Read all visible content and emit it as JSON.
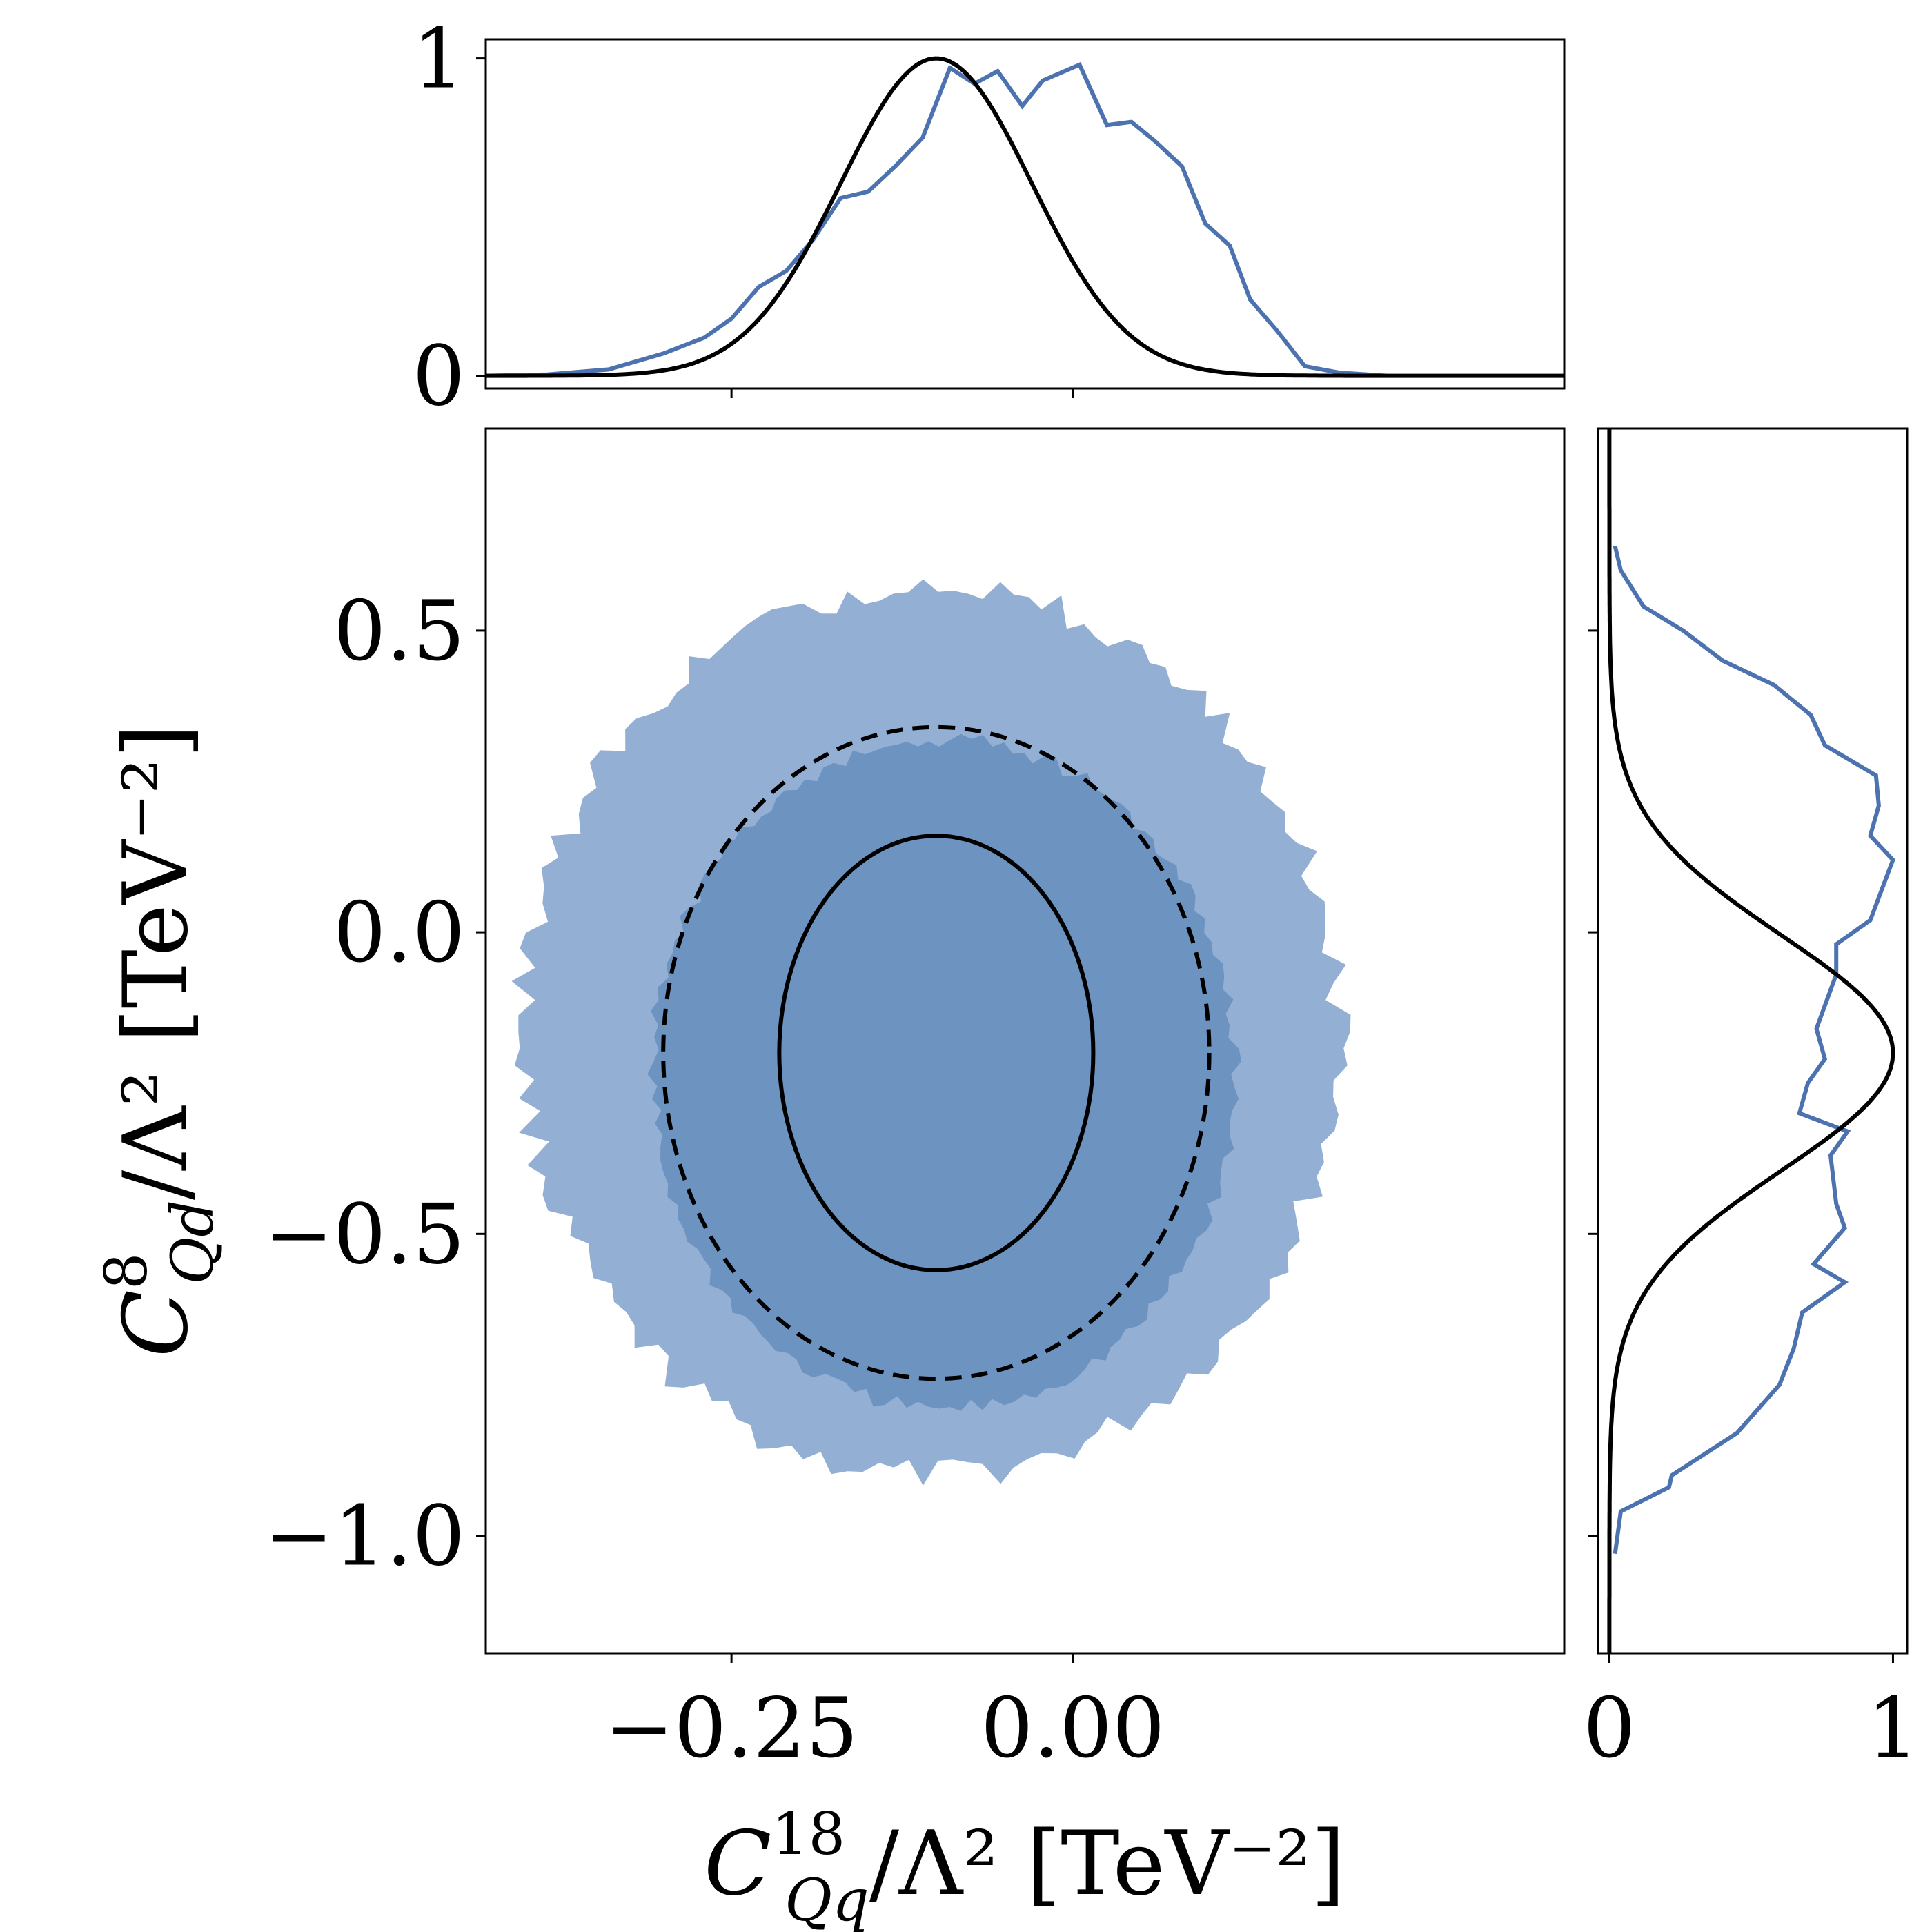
{
  "colors": {
    "posterior": "#4c72b0",
    "region_68": "#6d93c1",
    "region_95": "#93afd3",
    "gaussian": "#000000"
  },
  "chart_data": [
    {
      "panel": "joint",
      "type": "contour",
      "xlabel": {
        "main": "C",
        "sup": "18",
        "sub": "Qq",
        "rest": "/Λ² [TeV⁻²]"
      },
      "ylabel": {
        "main": "C",
        "sup": "8",
        "sub": "Qd",
        "rest": "/Λ² [TeV⁻²]"
      },
      "xlim": [
        -0.43,
        0.36
      ],
      "ylim": [
        -1.195,
        0.835
      ],
      "xticks": [
        -0.25,
        0.0
      ],
      "xtick_labels": [
        "−0.25",
        "0.00"
      ],
      "yticks": [
        0.5,
        0.0,
        -0.5,
        -1.0
      ],
      "ytick_labels": [
        "0.5",
        "0.0",
        "−0.5",
        "−1.0"
      ],
      "filled_regions": [
        {
          "name": "95",
          "center": [
            -0.104,
            -0.165
          ],
          "half_width": [
            0.299,
            0.735
          ]
        },
        {
          "name": "68",
          "center": [
            -0.094,
            -0.235
          ],
          "half_width": [
            0.214,
            0.555
          ]
        }
      ],
      "gaussian_ellipses": [
        {
          "name": "68",
          "style": "solid",
          "center": [
            -0.1,
            -0.2
          ],
          "half_width": [
            0.115,
            0.36
          ]
        },
        {
          "name": "95",
          "style": "dashed",
          "center": [
            -0.1,
            -0.2
          ],
          "half_width": [
            0.2,
            0.54
          ]
        }
      ],
      "grid": false
    },
    {
      "panel": "top",
      "type": "line",
      "xlim": [
        -0.43,
        0.36
      ],
      "ylim": [
        -0.04,
        1.06
      ],
      "yticks": [
        0,
        1
      ],
      "ytick_labels": [
        "0",
        "1"
      ],
      "series": [
        {
          "style": "posterior",
          "x": [
            -0.43,
            -0.385,
            -0.34,
            -0.3,
            -0.27,
            -0.25,
            -0.23,
            -0.21,
            -0.19,
            -0.17,
            -0.15,
            -0.13,
            -0.11,
            -0.09,
            -0.072,
            -0.055,
            -0.037,
            -0.022,
            0.005,
            0.025,
            0.043,
            0.06,
            0.08,
            0.097,
            0.115,
            0.13,
            0.15,
            0.17,
            0.195,
            0.23
          ],
          "y": [
            0.0,
            0.004,
            0.02,
            0.07,
            0.12,
            0.18,
            0.28,
            0.33,
            0.43,
            0.56,
            0.58,
            0.66,
            0.75,
            0.97,
            0.92,
            0.96,
            0.85,
            0.93,
            0.98,
            0.79,
            0.8,
            0.74,
            0.66,
            0.48,
            0.41,
            0.24,
            0.14,
            0.03,
            0.01,
            0.0
          ]
        },
        {
          "style": "gaussian",
          "mean": -0.1,
          "sigma": 0.07
        }
      ]
    },
    {
      "panel": "right",
      "type": "line",
      "orientation": "horizontal",
      "ylim": [
        -1.195,
        0.835
      ],
      "xlim": [
        -0.04,
        1.05
      ],
      "xticks": [
        0,
        1
      ],
      "xtick_labels": [
        "0",
        "1"
      ],
      "series": [
        {
          "style": "posterior",
          "y": [
            0.64,
            0.6,
            0.54,
            0.5,
            0.45,
            0.41,
            0.36,
            0.31,
            0.26,
            0.21,
            0.16,
            0.12,
            0.02,
            -0.02,
            -0.07,
            -0.16,
            -0.21,
            -0.25,
            -0.3,
            -0.33,
            -0.37,
            -0.45,
            -0.49,
            -0.55,
            -0.58,
            -0.63,
            -0.69,
            -0.75,
            -0.83,
            -0.9,
            -0.92,
            -0.96,
            -1.03
          ],
          "x": [
            0.02,
            0.04,
            0.12,
            0.26,
            0.4,
            0.58,
            0.71,
            0.76,
            0.94,
            0.95,
            0.92,
            1.0,
            0.92,
            0.8,
            0.8,
            0.73,
            0.76,
            0.7,
            0.67,
            0.84,
            0.78,
            0.8,
            0.83,
            0.72,
            0.83,
            0.68,
            0.65,
            0.6,
            0.45,
            0.22,
            0.21,
            0.04,
            0.02
          ]
        },
        {
          "style": "gaussian",
          "mean": -0.2,
          "sigma": 0.195
        }
      ]
    }
  ]
}
